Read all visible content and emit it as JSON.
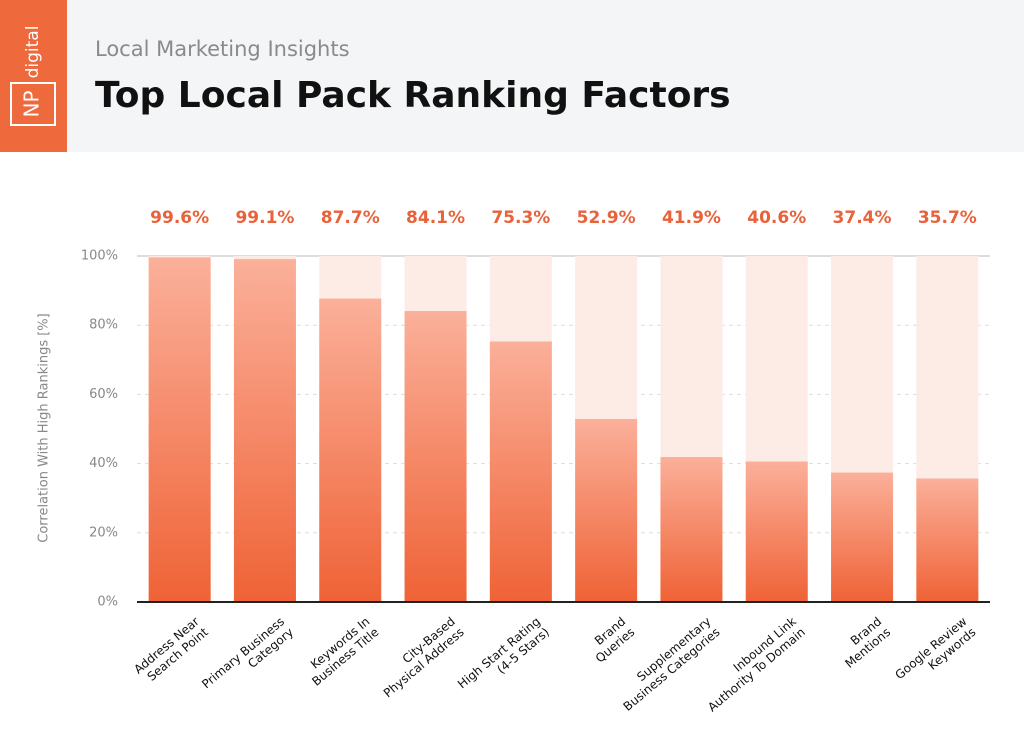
{
  "header": {
    "logo": [
      "NP",
      "digital"
    ],
    "subtitle": "Local Marketing Insights"
  },
  "chart_data": {
    "type": "bar",
    "title": "Top Local Pack Ranking Factors",
    "y_label": "Correlation With High Rankings [%]",
    "categories": [
      [
        "Address Near",
        "Search Point"
      ],
      [
        "Primary Business",
        "Category"
      ],
      [
        "Keywords In",
        "Business Title"
      ],
      [
        "City-Based",
        "Physical Address"
      ],
      [
        "High Start Rating",
        "(4-5 Stars)"
      ],
      [
        "Brand",
        "Queries"
      ],
      [
        "Supplementary",
        "Business Categories"
      ],
      [
        "Inbound Link",
        "Authority To Domain"
      ],
      [
        "Brand",
        "Mentions"
      ],
      [
        "Google Review",
        "Keywords"
      ]
    ],
    "values": [
      99.6,
      99.1,
      87.7,
      84.1,
      75.3,
      52.9,
      41.9,
      40.6,
      37.4,
      35.7
    ],
    "value_labels": [
      "99.6%",
      "99.1%",
      "87.7%",
      "84.1%",
      "75.3%",
      "52.9%",
      "41.9%",
      "40.6%",
      "37.4%",
      "35.7%"
    ],
    "color": "#ef6236",
    "ylim": [
      0,
      100
    ],
    "yticks": [
      {
        "value": 0,
        "label": "0%"
      },
      {
        "value": 20,
        "label": "20%"
      },
      {
        "value": 40,
        "label": "40%"
      },
      {
        "value": 60,
        "label": "60%"
      },
      {
        "value": 80,
        "label": "80%"
      },
      {
        "value": 100,
        "label": "100%"
      }
    ],
    "grid": true
  }
}
